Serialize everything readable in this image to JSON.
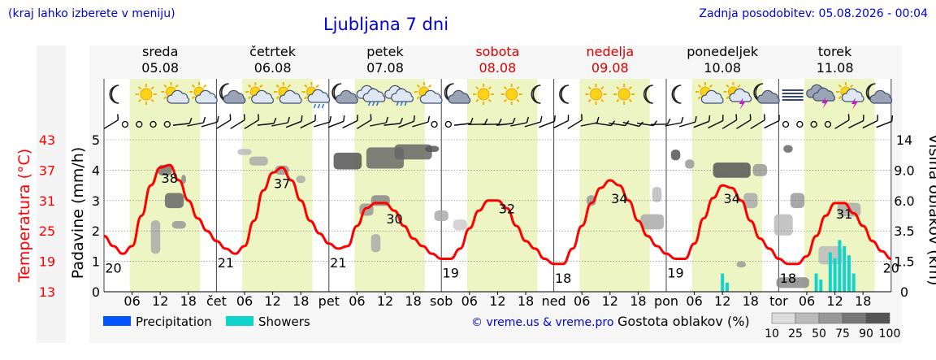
{
  "header": {
    "region_note": "(kraj lahko izberete v meniju)",
    "title": "Ljubljana 7 dni",
    "updated": "Zadnja posodobitev: 05.08.2026 - 00:04"
  },
  "days": [
    {
      "name": "sreda",
      "date": "05.08",
      "weekend": false,
      "short": ""
    },
    {
      "name": "četrtek",
      "date": "06.08",
      "weekend": false,
      "short": "čet"
    },
    {
      "name": "petek",
      "date": "07.08",
      "weekend": false,
      "short": "pet"
    },
    {
      "name": "sobota",
      "date": "08.08",
      "weekend": true,
      "short": "sob"
    },
    {
      "name": "nedelja",
      "date": "09.08",
      "weekend": true,
      "short": "ned"
    },
    {
      "name": "ponedeljek",
      "date": "10.08",
      "weekend": false,
      "short": "pon"
    },
    {
      "name": "torek",
      "date": "11.08",
      "weekend": false,
      "short": "tor"
    }
  ],
  "icons": [
    [
      "moon",
      "sun",
      "sun-cloud",
      "sun-cloud"
    ],
    [
      "moon-cloud",
      "sun-cloud",
      "sun-cloud",
      "sun-rain"
    ],
    [
      "moon-cloud",
      "cloud-rain",
      "cloud-rain",
      "sun-cloud"
    ],
    [
      "moon-cloud",
      "sun",
      "sun",
      "moon"
    ],
    [
      "moon",
      "sun",
      "sun",
      "moon"
    ],
    [
      "moon",
      "sun-cloud",
      "sun-storm",
      "moon-cloud"
    ],
    [
      "fog",
      "storm",
      "sun-storm",
      "moon-cloud"
    ]
  ],
  "legend": {
    "precipitation": "Precipitation",
    "showers": "Showers",
    "credit": "© vreme.us & vreme.pro",
    "cloud_density": "Gostota oblakov (%)",
    "density_ticks": [
      "10",
      "25",
      "50",
      "75",
      "90",
      "100"
    ]
  },
  "colors": {
    "temperature": "#ff0000",
    "precipitation": "#0055ff",
    "showers": "#11d4cc",
    "daylight": "#eef5c4",
    "weekend": "#dd0000",
    "title": "#0000dd"
  },
  "chart_data": {
    "type": "line",
    "title": "Ljubljana 7 dni",
    "y_left_outer": {
      "label": "Temperatura (°C)",
      "ticks": [
        13,
        19,
        25,
        31,
        37,
        43
      ],
      "range": [
        13,
        43
      ]
    },
    "y_left_inner": {
      "label": "Padavine (mm/h)",
      "ticks": [
        0,
        1,
        2,
        3,
        4,
        5
      ],
      "range": [
        0,
        5
      ]
    },
    "y_right": {
      "label": "Višina oblakov (km)",
      "ticks": [
        "0",
        "1.5",
        "3.5",
        "6.0",
        "9.0",
        "14"
      ]
    },
    "x_hour_ticks": [
      "06",
      "12",
      "18"
    ],
    "temperature_series": {
      "name": "Temperatura",
      "hours": [
        0,
        2,
        4,
        6,
        8,
        10,
        12,
        14,
        16,
        18,
        20,
        22,
        24,
        26,
        28,
        30,
        32,
        34,
        36,
        38,
        40,
        42,
        44,
        46,
        48,
        50,
        52,
        54,
        56,
        58,
        60,
        62,
        64,
        66,
        68,
        70,
        72,
        74,
        76,
        78,
        80,
        82,
        84,
        86,
        88,
        90,
        92,
        94,
        96,
        98,
        100,
        102,
        104,
        106,
        108,
        110,
        112,
        114,
        116,
        118,
        120,
        122,
        124,
        126,
        128,
        130,
        132,
        134,
        136,
        138,
        140,
        142,
        144,
        146,
        148,
        150,
        152,
        154,
        156,
        158,
        160,
        162,
        164,
        166,
        168
      ],
      "values": [
        24,
        22,
        20.5,
        22,
        28,
        34,
        37.5,
        38,
        35,
        31,
        27.5,
        25,
        23,
        21.5,
        20.5,
        22,
        27,
        33,
        36.5,
        37.5,
        35,
        31,
        27,
        24.5,
        22.5,
        21.5,
        22,
        26,
        29.5,
        30.5,
        30.5,
        29,
        26,
        23.5,
        22,
        20.5,
        19.5,
        19.5,
        21.5,
        25.5,
        29,
        31,
        31,
        29.5,
        26,
        23,
        21.5,
        19.5,
        18.5,
        18.5,
        21.5,
        26,
        30.5,
        33.5,
        35,
        34,
        31,
        27,
        24,
        22,
        20.5,
        19.5,
        19.5,
        22.5,
        27.5,
        31.5,
        34,
        33.5,
        31,
        27,
        23.5,
        21.5,
        19.5,
        18.5,
        18.5,
        20,
        24,
        28,
        30.5,
        30.5,
        28.5,
        26,
        23,
        21,
        19.5
      ]
    },
    "temperature_labels": [
      {
        "hour": 2,
        "value": 20
      },
      {
        "hour": 14,
        "value": 38
      },
      {
        "hour": 26,
        "value": 21
      },
      {
        "hour": 38,
        "value": 37
      },
      {
        "hour": 50,
        "value": 21
      },
      {
        "hour": 62,
        "value": 30
      },
      {
        "hour": 74,
        "value": 19
      },
      {
        "hour": 86,
        "value": 32
      },
      {
        "hour": 98,
        "value": 18
      },
      {
        "hour": 110,
        "value": 34
      },
      {
        "hour": 122,
        "value": 19
      },
      {
        "hour": 134,
        "value": 34
      },
      {
        "hour": 146,
        "value": 18
      },
      {
        "hour": 158,
        "value": 31
      },
      {
        "hour": 168,
        "value": 20
      }
    ],
    "showers_mm_h": [
      {
        "hour": 152,
        "value": 0.6
      },
      {
        "hour": 153,
        "value": 0.4
      },
      {
        "hour": 155,
        "value": 1.3
      },
      {
        "hour": 156,
        "value": 1.1
      },
      {
        "hour": 157,
        "value": 1.7
      },
      {
        "hour": 158,
        "value": 1.5
      },
      {
        "hour": 159,
        "value": 1.2
      },
      {
        "hour": 160,
        "value": 0.6
      },
      {
        "hour": 132,
        "value": 0.6
      },
      {
        "hour": 133,
        "value": 0.3
      }
    ],
    "grid": true,
    "legend_position": "bottom"
  }
}
